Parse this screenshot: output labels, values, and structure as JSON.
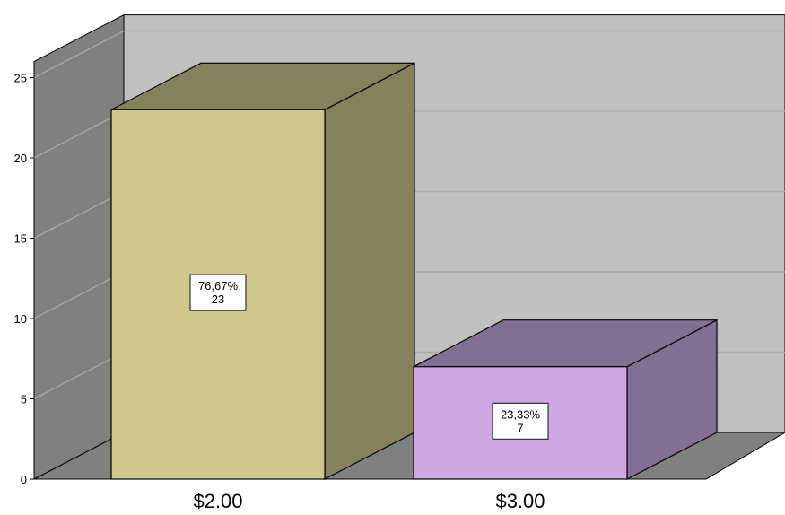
{
  "chart_data": {
    "type": "bar",
    "style": "3d",
    "title": "",
    "xlabel": "",
    "ylabel": "",
    "categories": [
      "$2.00",
      "$3.00"
    ],
    "values": [
      23,
      7
    ],
    "percent_labels": [
      "76,67%",
      "23,33%"
    ],
    "count_labels": [
      "23",
      "7"
    ],
    "yticks": [
      "0",
      "5",
      "10",
      "15",
      "20",
      "25"
    ],
    "ylim": [
      0,
      26
    ],
    "grid": true,
    "legend": "none",
    "colors": {
      "bar_front": [
        "#d0c98d",
        "#cfa8e3"
      ],
      "bar_side": [
        "#85825b",
        "#836f93"
      ],
      "bar_top": [
        "#85825b",
        "#836f93"
      ],
      "back_wall": "#c0c0c0",
      "side_wall": "#808080",
      "floor": "#808080"
    }
  }
}
